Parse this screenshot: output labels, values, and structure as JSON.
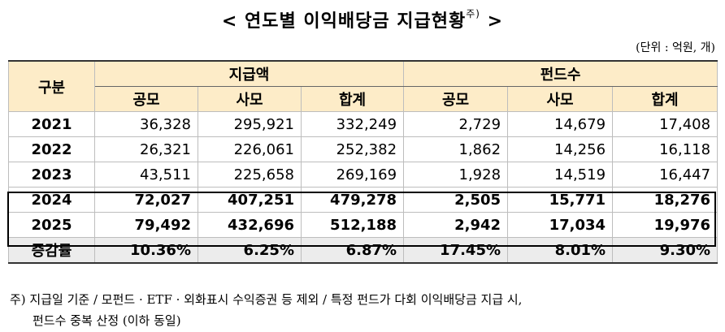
{
  "title": "< 연도별 이익배당금 지급현황",
  "title_mark": "주)",
  "title_close": ">",
  "unit": "(단위 : 억원, 개)",
  "table": {
    "row_header": "구분",
    "group1": "지급액",
    "group2": "펀드수",
    "subheaders": [
      "공모",
      "사모",
      "합계",
      "공모",
      "사모",
      "합계"
    ],
    "rows": [
      {
        "year": "2021",
        "values": [
          "36,328",
          "295,921",
          "332,249",
          "2,729",
          "14,679",
          "17,408"
        ]
      },
      {
        "year": "2022",
        "values": [
          "26,321",
          "226,061",
          "252,382",
          "1,862",
          "14,256",
          "16,118"
        ]
      },
      {
        "year": "2023",
        "values": [
          "43,511",
          "225,658",
          "269,169",
          "1,928",
          "14,519",
          "16,447"
        ]
      },
      {
        "year": "2024",
        "values": [
          "72,027",
          "407,251",
          "479,278",
          "2,505",
          "15,771",
          "18,276"
        ]
      },
      {
        "year": "2025",
        "values": [
          "79,492",
          "432,696",
          "512,188",
          "2,942",
          "17,034",
          "19,976"
        ]
      }
    ],
    "rate_row": {
      "label": "증감률",
      "values": [
        "10.36%",
        "6.25%",
        "6.87%",
        "17.45%",
        "8.01%",
        "9.30%"
      ]
    }
  },
  "footnote": {
    "line1": "주) 지급일 기준 / 모펀드 · ETF · 외화표시 수익증권 등 제외 / 특정 펀드가 다회 이익배당금 지급 시,",
    "line2": "펀드수 중복 산정 (이하 동일)"
  }
}
